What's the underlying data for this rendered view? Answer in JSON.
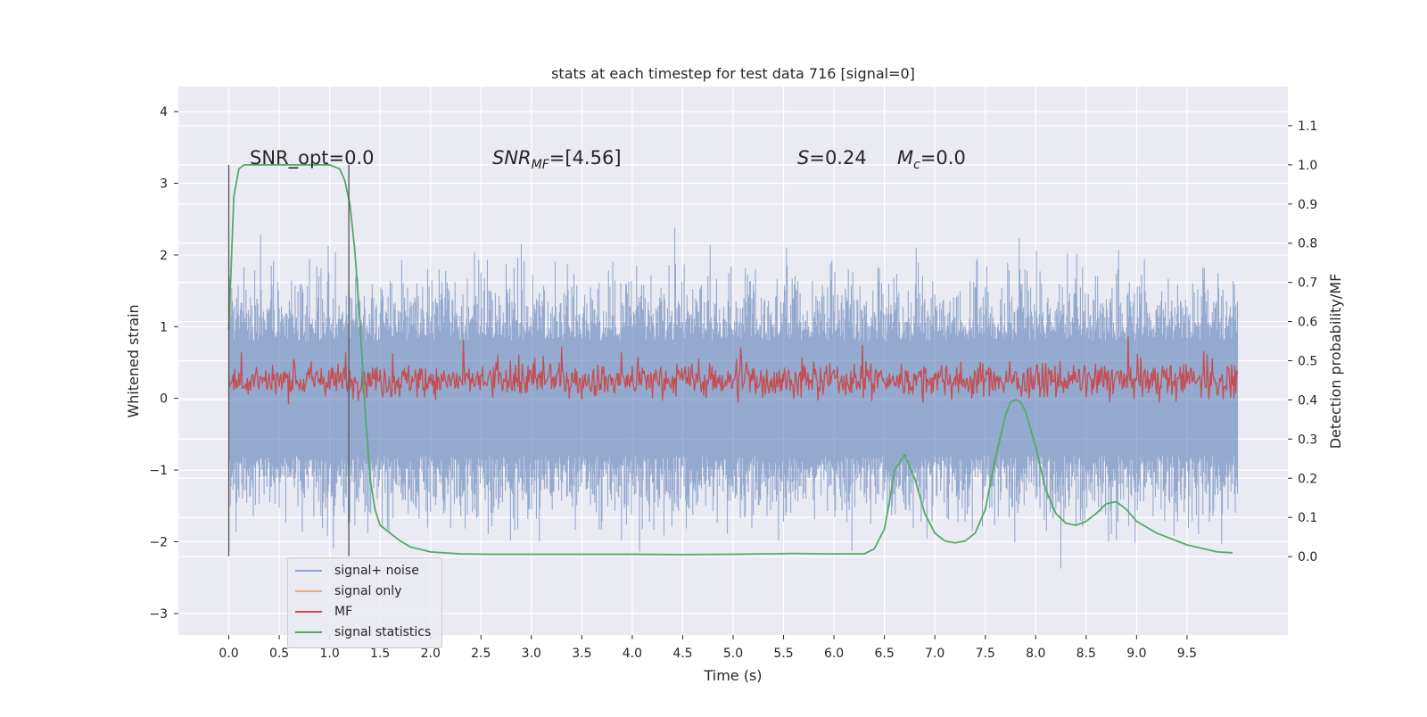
{
  "chart_data": {
    "type": "line",
    "title": "stats at each timestep for test data 716 [signal=0]",
    "xlabel": "Time (s)",
    "ylabel_left": "Whitened strain",
    "ylabel_right": "Detection probability/MF",
    "xlim": [
      -0.5,
      10.5
    ],
    "ylim_left": [
      -3.3,
      4.35
    ],
    "ylim_right": [
      -0.2,
      1.2
    ],
    "xticks": [
      "0.0",
      "0.5",
      "1.0",
      "1.5",
      "2.0",
      "2.5",
      "3.0",
      "3.5",
      "4.0",
      "4.5",
      "5.0",
      "5.5",
      "6.0",
      "6.5",
      "7.0",
      "7.5",
      "8.0",
      "8.5",
      "9.0",
      "9.5"
    ],
    "yticks_left": [
      "−3",
      "−2",
      "−1",
      "0",
      "1",
      "2",
      "3",
      "4"
    ],
    "yticks_right": [
      "0.0",
      "0.1",
      "0.2",
      "0.3",
      "0.4",
      "0.5",
      "0.6",
      "0.7",
      "0.8",
      "0.9",
      "1.0",
      "1.1"
    ],
    "grid": true,
    "legend_placement": "lower-left",
    "annotations": {
      "snr_opt": "SNR_opt=0.0",
      "snr_mf_prefix": "SNR",
      "snr_mf_sub": "MF",
      "snr_mf_suffix": "=[4.56]",
      "s_label": "S",
      "s_value": "=0.24",
      "mc_label": "M",
      "mc_sub": "c",
      "mc_value": "=0.0"
    },
    "vertical_markers_x": [
      0.0,
      1.19
    ],
    "series": [
      {
        "name": "signal+ noise",
        "axis": "left",
        "color": "#4c72b0",
        "opacity": 0.55,
        "description_range": [
          -2.2,
          2.6
        ],
        "x_range": [
          0.0,
          10.0
        ]
      },
      {
        "name": "signal only",
        "axis": "left",
        "color": "#dd8452",
        "opacity": 0.6
      },
      {
        "name": "MF",
        "axis": "right",
        "color": "#c44e52",
        "band": [
          0.4,
          0.5
        ],
        "x_range": [
          0.0,
          10.0
        ]
      },
      {
        "name": "signal statistics",
        "axis": "right",
        "color": "#55a868",
        "x": [
          0.0,
          0.05,
          0.1,
          0.15,
          0.2,
          0.3,
          0.5,
          0.7,
          0.9,
          1.0,
          1.1,
          1.15,
          1.2,
          1.25,
          1.3,
          1.35,
          1.4,
          1.45,
          1.5,
          1.6,
          1.7,
          1.8,
          2.0,
          2.3,
          2.6,
          3.0,
          3.5,
          4.0,
          4.5,
          5.0,
          5.3,
          5.6,
          6.0,
          6.3,
          6.4,
          6.5,
          6.55,
          6.6,
          6.7,
          6.8,
          6.9,
          7.0,
          7.1,
          7.2,
          7.3,
          7.4,
          7.5,
          7.6,
          7.7,
          7.75,
          7.8,
          7.85,
          7.9,
          8.0,
          8.1,
          8.2,
          8.3,
          8.4,
          8.5,
          8.6,
          8.7,
          8.8,
          8.9,
          9.0,
          9.2,
          9.5,
          9.8,
          9.95
        ],
        "y": [
          0.58,
          0.92,
          0.99,
          1.0,
          1.0,
          1.0,
          1.0,
          1.0,
          1.0,
          1.0,
          0.99,
          0.96,
          0.9,
          0.78,
          0.6,
          0.38,
          0.2,
          0.12,
          0.08,
          0.06,
          0.04,
          0.025,
          0.012,
          0.007,
          0.006,
          0.006,
          0.006,
          0.006,
          0.005,
          0.006,
          0.007,
          0.008,
          0.007,
          0.007,
          0.02,
          0.07,
          0.14,
          0.22,
          0.26,
          0.2,
          0.11,
          0.06,
          0.04,
          0.035,
          0.04,
          0.06,
          0.12,
          0.25,
          0.36,
          0.395,
          0.4,
          0.395,
          0.37,
          0.28,
          0.17,
          0.11,
          0.085,
          0.08,
          0.09,
          0.11,
          0.135,
          0.14,
          0.12,
          0.09,
          0.06,
          0.03,
          0.012,
          0.01
        ]
      }
    ]
  },
  "legend": {
    "items": [
      {
        "label": "signal+ noise",
        "color": "#8fa5cf"
      },
      {
        "label": "signal only",
        "color": "#e8a88a"
      },
      {
        "label": "MF",
        "color": "#c44e52"
      },
      {
        "label": "signal statistics",
        "color": "#55a868"
      }
    ]
  }
}
